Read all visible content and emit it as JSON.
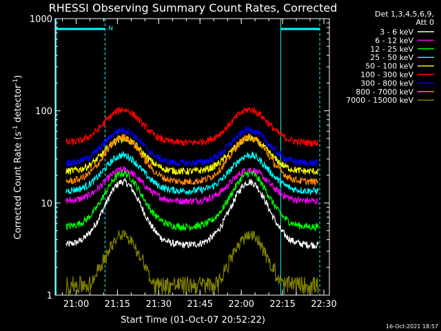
{
  "footer": {
    "timestamp": "16-Oct-2021 18:57"
  },
  "chart_data": {
    "type": "line",
    "title": "RHESSI Observing Summary Count Rates, Corrected",
    "xlabel": "Start Time (01-Oct-07 20:52:22)",
    "ylabel_parts": [
      "Corrected Count Rate (s",
      "-1",
      " detector",
      "-1",
      ")"
    ],
    "yscale": "log",
    "ylim": [
      1,
      1000
    ],
    "y_ticks": [
      "1",
      "10",
      "100",
      "1000"
    ],
    "x_tick_labels": [
      "21:00",
      "21:15",
      "21:30",
      "21:45",
      "22:00",
      "22:15",
      "22:30"
    ],
    "xlim": [
      "20:52:22",
      "22:32:00"
    ],
    "legend_header": [
      "Det 1,3,4,5,6,9,",
      "Att 0"
    ],
    "legend_placement": "right",
    "annotations": {
      "night_intervals": [
        [
          "20:52:22",
          "21:10:30"
        ],
        [
          "22:14:20",
          "22:28:30"
        ]
      ],
      "n_marker": "N",
      "dashed_markers": [
        "21:10:30",
        "22:28:30"
      ]
    },
    "series": [
      {
        "name": "3 - 6 keV",
        "color": "#ffffff",
        "night_level": 3.5,
        "peak_level": 17
      },
      {
        "name": "6 - 12 keV",
        "color": "#ff00ff",
        "night_level": 10.5,
        "peak_level": 23
      },
      {
        "name": "12 - 25 keV",
        "color": "#00ff00",
        "night_level": 5.5,
        "peak_level": 21
      },
      {
        "name": "25 - 50 keV",
        "color": "#00ffff",
        "night_level": 13.5,
        "peak_level": 33
      },
      {
        "name": "50 - 100 keV",
        "color": "#ffff00",
        "night_level": 22,
        "peak_level": 50
      },
      {
        "name": "100 - 300 keV",
        "color": "#ff0000",
        "night_level": 45,
        "peak_level": 103
      },
      {
        "name": "300 - 800 keV",
        "color": "#0000ff",
        "night_level": 27,
        "peak_level": 62
      },
      {
        "name": "800 - 7000 keV",
        "color": "#ff8800",
        "night_level": 17,
        "peak_level": 52
      },
      {
        "name": "7000 - 15000 keV",
        "color": "#808000",
        "night_level": 1,
        "peak_level": 4.5
      }
    ],
    "orbit_peaks": [
      "21:17:00",
      "22:03:00"
    ]
  }
}
